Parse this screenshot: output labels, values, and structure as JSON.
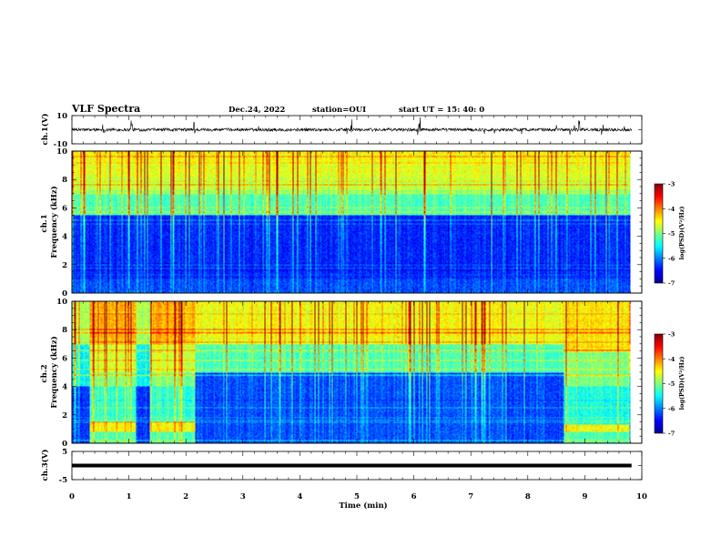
{
  "header": {
    "title": "VLF Spectra",
    "date": "Dec.24, 2022",
    "station": "station=OUI",
    "start": "start  UT  =   15: 40: 0"
  },
  "chart_data": [
    {
      "type": "line",
      "name": "ch1-waveform",
      "ylabel": "ch.1(V)",
      "ylim": [
        -10,
        10
      ],
      "y_ticks": [
        "10",
        "-10"
      ],
      "baseline": 0,
      "spike_times_min": [
        0.55,
        1.05,
        2.15,
        4.9,
        6.1,
        8.5,
        8.9
      ]
    },
    {
      "type": "heatmap",
      "name": "ch1-spectrogram",
      "ylabel": "ch.1\nFrequency (kHz)",
      "ylim": [
        0,
        10
      ],
      "y_ticks": [
        "0",
        "2",
        "4",
        "6",
        "8",
        "10"
      ],
      "colorbar": {
        "label": "log(PSD)(V²/Hz)",
        "range": [
          -7,
          -3
        ],
        "ticks": [
          "-3",
          "-4",
          "-5",
          "-6",
          "-7"
        ]
      }
    },
    {
      "type": "heatmap",
      "name": "ch2-spectrogram",
      "ylabel": "ch.2\nFrequency (kHz)",
      "ylim": [
        0,
        10
      ],
      "y_ticks": [
        "0",
        "2",
        "4",
        "6",
        "8",
        "10"
      ],
      "quiet_intervals_min": [
        [
          1.12,
          1.35
        ],
        [
          8.65,
          9.8
        ]
      ],
      "colorbar": {
        "label": "log(PSD)(V²/Hz)",
        "range": [
          -7,
          -3
        ],
        "ticks": [
          "-3",
          "-4",
          "-5",
          "-6",
          "-7"
        ]
      }
    },
    {
      "type": "line",
      "name": "ch3-waveform",
      "ylabel": "ch.3(V)",
      "ylim": [
        -5,
        5
      ],
      "y_ticks": [
        "5",
        "-5"
      ],
      "baseline": 0
    }
  ],
  "x_axis": {
    "label": "Time  (min)",
    "xlim": [
      0,
      10
    ],
    "ticks": [
      "0",
      "1",
      "2",
      "3",
      "4",
      "5",
      "6",
      "7",
      "8",
      "9",
      "10"
    ],
    "data_end_min": 9.82
  }
}
